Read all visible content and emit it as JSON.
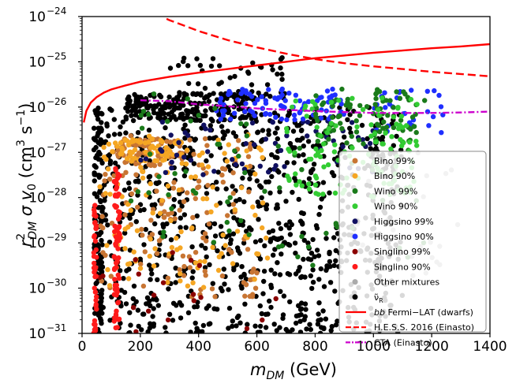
{
  "chart_data": {
    "type": "scatter",
    "title": "",
    "xlabel": "m_DM (GeV)",
    "ylabel": "r²_DM σ v0 (cm³ s⁻¹)",
    "xlim": [
      0,
      1400
    ],
    "ylim_log10": [
      -31,
      -24
    ],
    "x_ticks": [
      0,
      200,
      400,
      600,
      800,
      1000,
      1200,
      1400
    ],
    "x_tick_labels": [
      "0",
      "200",
      "400",
      "600",
      "800",
      "1000",
      "1200",
      "1400"
    ],
    "y_ticks_log10": [
      -31,
      -30,
      -29,
      -28,
      -27,
      -26,
      -25,
      -24
    ],
    "y_tick_labels": [
      "10",
      "10",
      "10",
      "10",
      "10",
      "10",
      "10",
      "10"
    ],
    "y_tick_exponents": [
      "−31",
      "−30",
      "−29",
      "−28",
      "−27",
      "−26",
      "−25",
      "−24"
    ],
    "xlabel_parts": {
      "base": "m",
      "sub": "DM",
      "rest": " (GeV)"
    },
    "ylabel_parts": {
      "r": "r",
      "sup": "2",
      "sub": "DM",
      "sigma": " σ v",
      "v_sub": "0",
      "units": " (cm",
      "u_sup": "3",
      "s": " s",
      "s_sup": "−1",
      "close": ")"
    },
    "series": [
      {
        "name": "Bino 99%",
        "label": "Bino 99%",
        "color": "#c87533",
        "kind": "scatter",
        "clusters": [
          {
            "xmin": 60,
            "xmax": 600,
            "ymin": -30.2,
            "ymax": -26.6,
            "n": 140
          },
          {
            "xmin": 100,
            "xmax": 350,
            "ymin": -27.3,
            "ymax": -26.7,
            "n": 60
          }
        ]
      },
      {
        "name": "Bino 90%",
        "label": "Bino 90%",
        "color": "#f5a623",
        "kind": "scatter",
        "clusters": [
          {
            "xmin": 60,
            "xmax": 650,
            "ymin": -30.0,
            "ymax": -26.6,
            "n": 130
          },
          {
            "xmin": 120,
            "xmax": 350,
            "ymin": -27.2,
            "ymax": -26.7,
            "n": 50
          }
        ]
      },
      {
        "name": "Wino 99%",
        "label": "Wino 99%",
        "color": "#1a7a1a",
        "kind": "scatter",
        "clusters": [
          {
            "xmin": 150,
            "xmax": 1200,
            "ymin": -29.5,
            "ymax": -25.6,
            "n": 70
          },
          {
            "xmin": 800,
            "xmax": 1150,
            "ymin": -26.8,
            "ymax": -25.6,
            "n": 90
          }
        ]
      },
      {
        "name": "Wino 90%",
        "label": "Wino 90%",
        "color": "#33cc33",
        "kind": "scatter",
        "clusters": [
          {
            "xmin": 700,
            "xmax": 1150,
            "ymin": -28.0,
            "ymax": -25.8,
            "n": 120
          }
        ]
      },
      {
        "name": "Higgsino 99%",
        "label": "Higgsino 99%",
        "color": "#101060",
        "kind": "scatter",
        "clusters": [
          {
            "xmin": 200,
            "xmax": 1000,
            "ymin": -27.5,
            "ymax": -26.3,
            "n": 60
          }
        ]
      },
      {
        "name": "Higgsino 90%",
        "label": "Higgsino 90%",
        "color": "#1f2fff",
        "kind": "scatter",
        "clusters": [
          {
            "xmin": 450,
            "xmax": 900,
            "ymin": -26.3,
            "ymax": -25.6,
            "n": 90
          },
          {
            "xmin": 1000,
            "xmax": 1250,
            "ymin": -26.6,
            "ymax": -25.6,
            "n": 30
          }
        ]
      },
      {
        "name": "Singlino 99%",
        "label": "Singlino 99%",
        "color": "#8b0000",
        "kind": "scatter",
        "clusters": [
          {
            "xmin": 60,
            "xmax": 700,
            "ymin": -31.0,
            "ymax": -28.5,
            "n": 20
          }
        ]
      },
      {
        "name": "Singlino 90%",
        "label": "Singlino 90%",
        "color": "#ff1a1a",
        "kind": "scatter",
        "clusters": [
          {
            "xmin": 40,
            "xmax": 50,
            "ymin": -31.0,
            "ymax": -28.0,
            "n": 40
          },
          {
            "xmin": 110,
            "xmax": 130,
            "ymin": -31.0,
            "ymax": -27.3,
            "n": 70
          }
        ]
      },
      {
        "name": "Other mixtures",
        "label": "Other mixtures",
        "color": "#aaaaaa",
        "kind": "scatter",
        "clusters": [
          {
            "xmin": 900,
            "xmax": 1300,
            "ymin": -30.0,
            "ymax": -27.0,
            "n": 25
          }
        ]
      },
      {
        "name": "nu_R",
        "label": "ν̃",
        "label_sub": "R",
        "color": "#000000",
        "kind": "scatter",
        "clusters": [
          {
            "xmin": 50,
            "xmax": 1100,
            "ymin": -31.0,
            "ymax": -26.0,
            "n": 900
          },
          {
            "xmin": 150,
            "xmax": 600,
            "ymin": -26.3,
            "ymax": -25.7,
            "n": 200
          },
          {
            "xmin": 300,
            "xmax": 700,
            "ymin": -25.8,
            "ymax": -24.9,
            "n": 50
          },
          {
            "xmin": 40,
            "xmax": 70,
            "ymin": -31.0,
            "ymax": -26.0,
            "n": 120
          }
        ]
      },
      {
        "name": "bb Fermi-LAT (dwarfs)",
        "label": "Fermi−LAT (dwarfs)",
        "label_prefix": "bb",
        "color": "#ff0000",
        "kind": "line",
        "dash": "solid",
        "x": [
          6,
          15,
          30,
          50,
          75,
          100,
          150,
          200,
          300,
          400,
          500,
          600,
          700,
          800,
          900,
          1000,
          1100,
          1200,
          1300,
          1400
        ],
        "log10_y": [
          -26.34,
          -26.08,
          -25.9,
          -25.78,
          -25.68,
          -25.61,
          -25.52,
          -25.44,
          -25.33,
          -25.24,
          -25.16,
          -25.08,
          -25.0,
          -24.92,
          -24.86,
          -24.8,
          -24.75,
          -24.7,
          -24.66,
          -24.61
        ]
      },
      {
        "name": "H.E.S.S. 2016 (Einasto)",
        "label": "H.E.S.S. 2016 (Einasto)",
        "color": "#ff0000",
        "kind": "line",
        "dash": "dashed",
        "x": [
          290,
          300,
          400,
          500,
          600,
          700,
          800,
          900,
          1000,
          1100,
          1200,
          1300,
          1400
        ],
        "log10_y": [
          -24.05,
          -24.08,
          -24.32,
          -24.52,
          -24.68,
          -24.82,
          -24.94,
          -25.03,
          -25.1,
          -25.16,
          -25.22,
          -25.27,
          -25.32
        ]
      },
      {
        "name": "CTA (Einasto)",
        "label": "CTA (Einasto)",
        "color": "#cc00cc",
        "kind": "line",
        "dash": "dashdot",
        "x": [
          200,
          300,
          400,
          500,
          600,
          700,
          800,
          900,
          1000,
          1100,
          1200,
          1300,
          1400
        ],
        "log10_y": [
          -25.85,
          -25.87,
          -25.94,
          -25.98,
          -26.03,
          -26.06,
          -26.09,
          -26.11,
          -26.13,
          -26.13,
          -26.13,
          -26.12,
          -26.1
        ]
      }
    ],
    "legend_position": "lower-right"
  }
}
